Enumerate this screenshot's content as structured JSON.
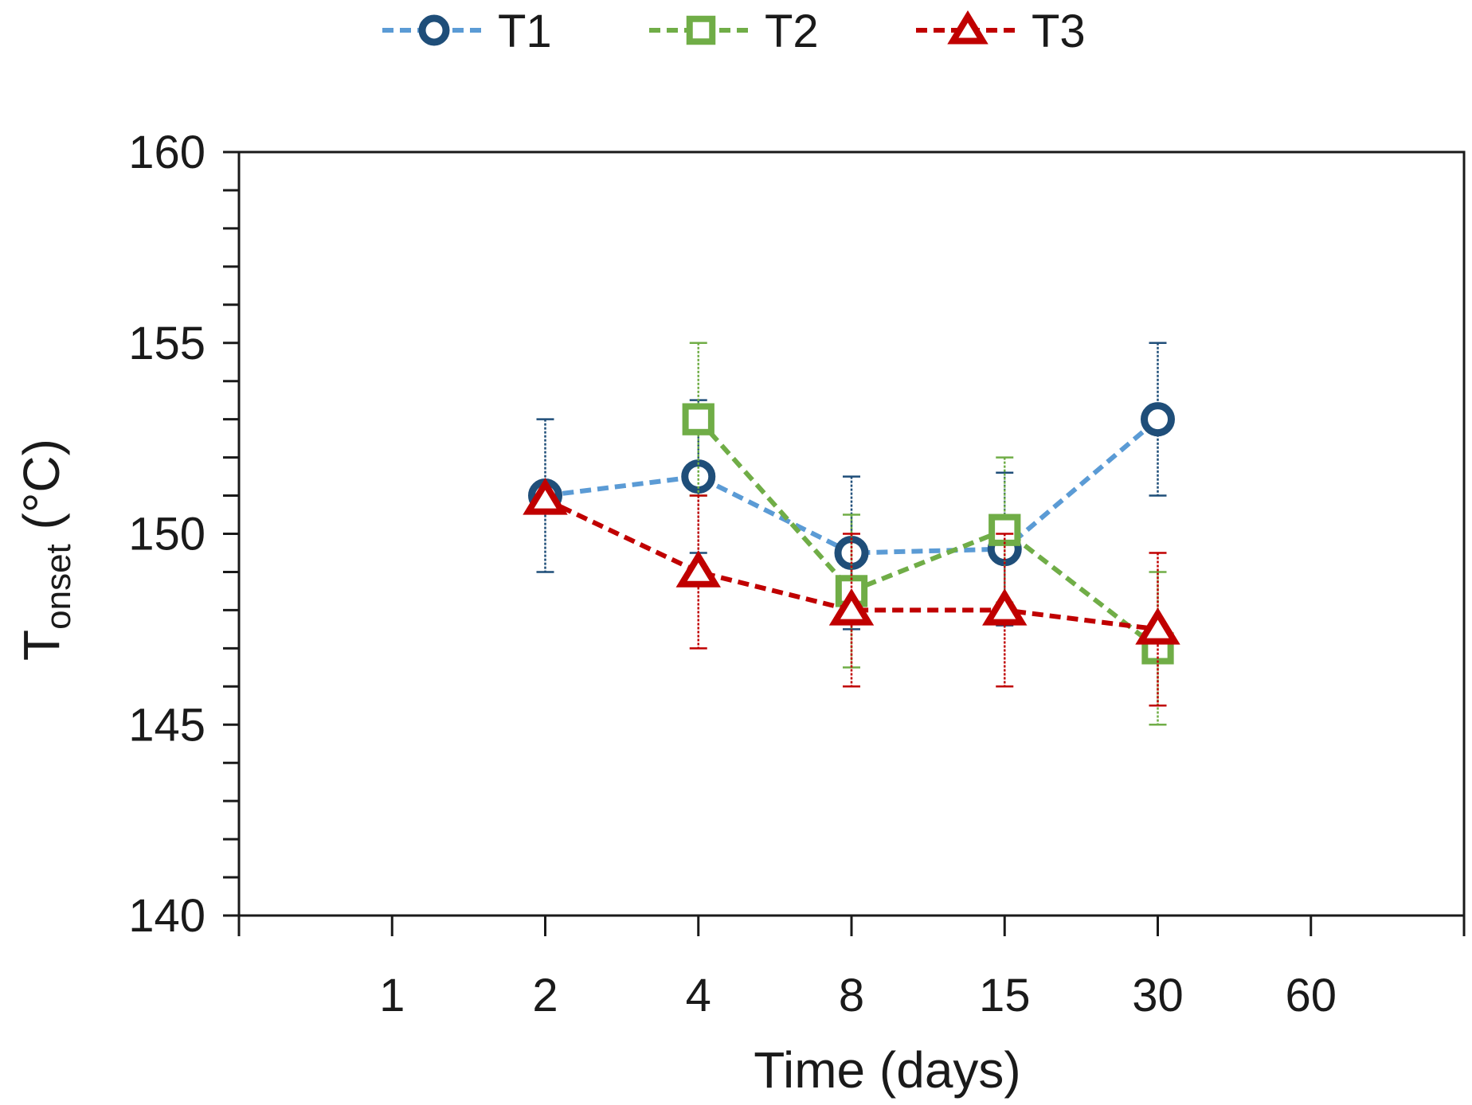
{
  "chart_data": {
    "type": "line",
    "title": "",
    "xlabel": "Time (days)",
    "ylabel_main": "T",
    "ylabel_sub": "onset",
    "ylabel_unit": " (°C)",
    "categories": [
      "1",
      "2",
      "4",
      "8",
      "15",
      "30",
      "60"
    ],
    "ylim": [
      140,
      160
    ],
    "yticks": [
      "140",
      "145",
      "150",
      "155",
      "160"
    ],
    "grid": false,
    "legend_position": "top-center",
    "series": [
      {
        "name": "T1",
        "marker": "circle",
        "line_color": "#5b9bd5",
        "marker_color": "#1f4e79",
        "points": [
          {
            "x": "2",
            "y": 151.0,
            "err": 2.0
          },
          {
            "x": "4",
            "y": 151.5,
            "err": 2.0
          },
          {
            "x": "8",
            "y": 149.5,
            "err": 2.0
          },
          {
            "x": "15",
            "y": 149.6,
            "err": 2.0
          },
          {
            "x": "30",
            "y": 153.0,
            "err": 2.0
          }
        ]
      },
      {
        "name": "T2",
        "marker": "square",
        "line_color": "#70ad47",
        "marker_color": "#70ad47",
        "points": [
          {
            "x": "4",
            "y": 153.0,
            "err": 2.0
          },
          {
            "x": "8",
            "y": 148.5,
            "err": 2.0
          },
          {
            "x": "15",
            "y": 150.1,
            "err": 1.9
          },
          {
            "x": "30",
            "y": 147.0,
            "err": 2.0
          }
        ]
      },
      {
        "name": "T3",
        "marker": "triangle",
        "line_color": "#c00000",
        "marker_color": "#c00000",
        "points": [
          {
            "x": "2",
            "y": 150.9,
            "err": 0.0
          },
          {
            "x": "4",
            "y": 149.0,
            "err": 2.0
          },
          {
            "x": "8",
            "y": 148.0,
            "err": 2.0
          },
          {
            "x": "15",
            "y": 148.0,
            "err": 2.0
          },
          {
            "x": "30",
            "y": 147.5,
            "err": 2.0
          }
        ]
      }
    ]
  }
}
